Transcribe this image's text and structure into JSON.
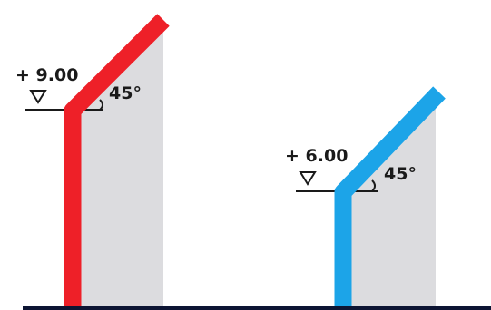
{
  "colors": {
    "background": "#ffffff",
    "shade": "#dcdcdf",
    "ground": "#0d1533",
    "ink": "#1a1a1a",
    "left_profile": "#ee2028",
    "right_profile": "#1ca4e8"
  },
  "left": {
    "elevation": "+ 9.00",
    "angle": "45°"
  },
  "right": {
    "elevation": "+ 6.00",
    "angle": "45°"
  }
}
